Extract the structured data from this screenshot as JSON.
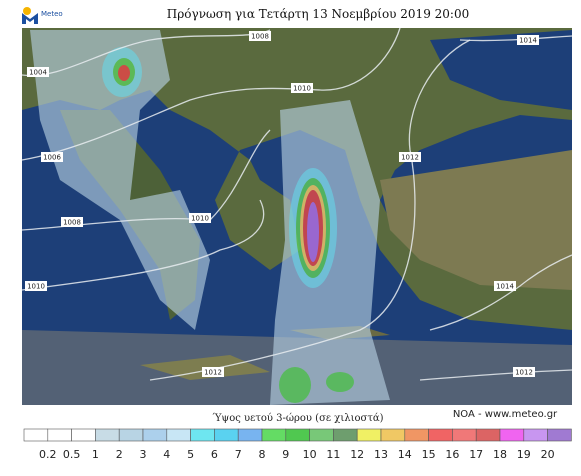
{
  "header": {
    "logo": "Meteo",
    "title": "Πρόγνωση για Τετάρτη 13 Νοεμβρίου 2019 20:00"
  },
  "map": {
    "isobar_labels": [
      "1004",
      "1008",
      "1014",
      "1010",
      "1006",
      "1012",
      "1008",
      "1010",
      "1010",
      "1014",
      "1012",
      "1012"
    ]
  },
  "legend": {
    "title": "Ύψος υετού 3-ώρου (σε χιλιοστά)",
    "credit": "NOA - www.meteo.gr",
    "labels": [
      "0.2",
      "0.5",
      "1",
      "2",
      "3",
      "4",
      "5",
      "6",
      "7",
      "8",
      "9",
      "10",
      "11",
      "12",
      "13",
      "14",
      "15",
      "16",
      "17",
      "18",
      "19",
      "20"
    ]
  }
}
